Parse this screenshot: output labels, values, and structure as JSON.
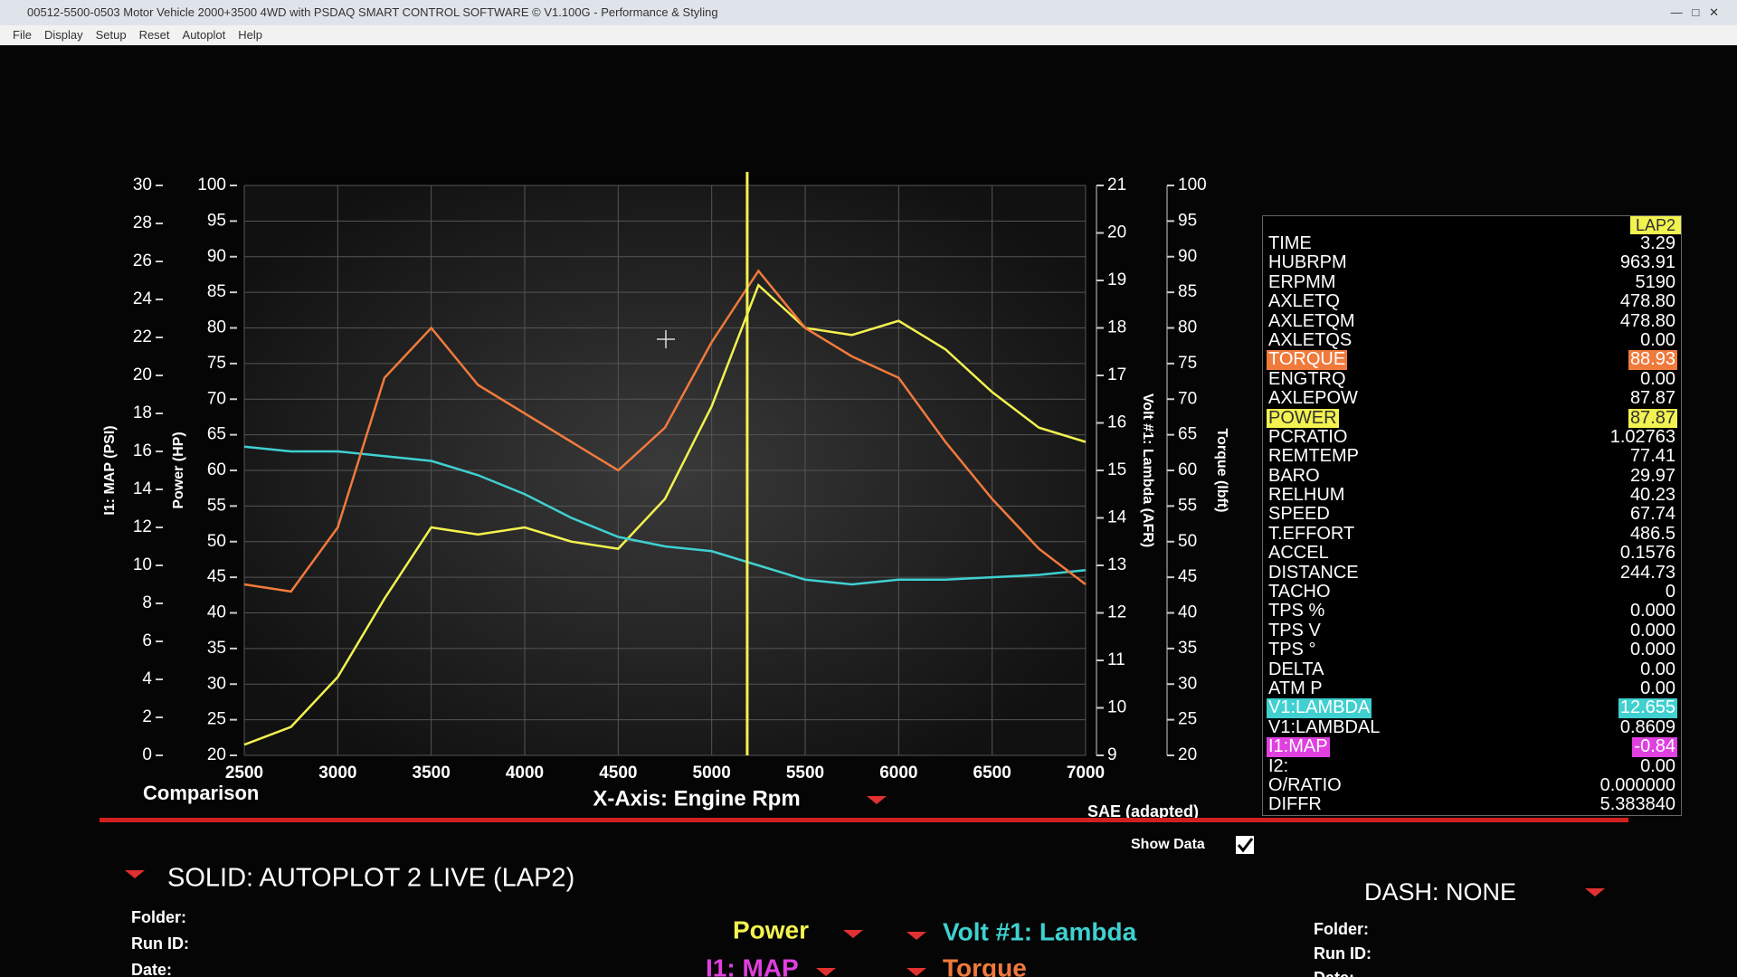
{
  "window": {
    "title": "00512-5500-0503 Motor Vehicle 2000+3500 4WD with PSDAQ SMART CONTROL SOFTWARE © V1.100G - Performance & Styling",
    "menu": [
      "File",
      "Display",
      "Setup",
      "Reset",
      "Autoplot",
      "Help"
    ]
  },
  "chart_data": {
    "type": "line",
    "x_label": "X-Axis: Engine Rpm",
    "xlim": [
      2500,
      7000
    ],
    "xticks": [
      2500,
      3000,
      3500,
      4000,
      4500,
      5000,
      5500,
      6000,
      6500,
      7000
    ],
    "grid": true,
    "cursor_x": 5190,
    "axes": [
      {
        "label": "I1: MAP (PSI)",
        "lim": [
          0,
          30
        ],
        "ticks": [
          0,
          2,
          4,
          6,
          8,
          10,
          12,
          14,
          16,
          18,
          20,
          22,
          24,
          26,
          28,
          30
        ]
      },
      {
        "label": "Power (HP)",
        "lim": [
          20,
          100
        ],
        "ticks": [
          20,
          25,
          30,
          35,
          40,
          45,
          50,
          55,
          60,
          65,
          70,
          75,
          80,
          85,
          90,
          95,
          100
        ]
      },
      {
        "label": "Volt #1: Lambda (AFR)",
        "lim": [
          9,
          21
        ],
        "ticks": [
          9,
          10,
          11,
          12,
          13,
          14,
          15,
          16,
          17,
          18,
          19,
          20,
          21
        ]
      },
      {
        "label": "Torque (lbft)",
        "lim": [
          20,
          100
        ],
        "ticks": [
          20,
          25,
          30,
          35,
          40,
          45,
          50,
          55,
          60,
          65,
          70,
          75,
          80,
          85,
          90,
          95,
          100
        ]
      }
    ],
    "x": [
      2500,
      2750,
      3000,
      3250,
      3500,
      3750,
      4000,
      4250,
      4500,
      4750,
      5000,
      5250,
      5500,
      5750,
      6000,
      6250,
      6500,
      6750,
      7000
    ],
    "series": [
      {
        "name": "Power",
        "color": "#f2f250",
        "axis": 1,
        "values": [
          21.5,
          24,
          31,
          42,
          52,
          51,
          52,
          50,
          49,
          56,
          69,
          86,
          80,
          79,
          81,
          77,
          71,
          66,
          64
        ]
      },
      {
        "name": "Volt #1: Lambda",
        "color": "#40d0d0",
        "axis": 2,
        "values": [
          15.5,
          15.4,
          15.4,
          15.3,
          15.2,
          14.9,
          14.5,
          14.0,
          13.6,
          13.4,
          13.3,
          13.0,
          12.7,
          12.6,
          12.7,
          12.7,
          12.75,
          12.8,
          12.9
        ]
      },
      {
        "name": "Torque",
        "color": "#f07a3c",
        "axis": 3,
        "values": [
          44,
          43,
          52,
          73,
          80,
          72,
          68,
          64,
          60,
          66,
          78,
          88,
          80,
          76,
          73,
          64,
          56,
          49,
          44
        ]
      }
    ],
    "extra_channels": [
      {
        "name": "I1: MAP",
        "color": "#e040e0"
      }
    ]
  },
  "readout": {
    "header": "LAP2",
    "rows": [
      {
        "label": "TIME",
        "value": "3.29"
      },
      {
        "label": "HUBRPM",
        "value": "963.91"
      },
      {
        "label": "ERPMM",
        "value": "5190"
      },
      {
        "label": "AXLETQ",
        "value": "478.80"
      },
      {
        "label": "AXLETQM",
        "value": "478.80"
      },
      {
        "label": "AXLETQS",
        "value": "0.00"
      },
      {
        "label": "TORQUE",
        "value": "88.93",
        "color": "#f07a3c"
      },
      {
        "label": "ENGTRQ",
        "value": "0.00"
      },
      {
        "label": "AXLEPOW",
        "value": "87.87"
      },
      {
        "label": "POWER",
        "value": "87.87",
        "color": "#f2f250"
      },
      {
        "label": "PCRATIO",
        "value": "1.02763"
      },
      {
        "label": "REMTEMP",
        "value": "77.41"
      },
      {
        "label": "BARO",
        "value": "29.97"
      },
      {
        "label": "RELHUM",
        "value": "40.23"
      },
      {
        "label": "SPEED",
        "value": "67.74"
      },
      {
        "label": "T.EFFORT",
        "value": "486.5"
      },
      {
        "label": "ACCEL",
        "value": "0.1576"
      },
      {
        "label": "DISTANCE",
        "value": "244.73"
      },
      {
        "label": "TACHO",
        "value": "0"
      },
      {
        "label": "TPS %",
        "value": "0.000"
      },
      {
        "label": "TPS V",
        "value": "0.000"
      },
      {
        "label": "TPS °",
        "value": "0.000"
      },
      {
        "label": "DELTA",
        "value": "0.00"
      },
      {
        "label": "ATM P",
        "value": "0.00"
      },
      {
        "label": "V1:LAMBDA",
        "value": "12.655",
        "color": "#40d0d0"
      },
      {
        "label": "V1:LAMBDAL",
        "value": "0.8609"
      },
      {
        "label": "I1:MAP",
        "value": "-0.84",
        "color": "#e040e0"
      },
      {
        "label": "I2:",
        "value": "0.00"
      },
      {
        "label": "O/RATIO",
        "value": "0.000000"
      },
      {
        "label": "DIFFR",
        "value": "5.383840"
      }
    ]
  },
  "bottom": {
    "comparison": "Comparison",
    "standard": "SAE (adapted)",
    "show_data": "Show Data",
    "solid": "SOLID: AUTOPLOT 2 LIVE (LAP2)",
    "dash": "DASH: NONE",
    "left_fields": [
      "Folder:",
      "Run ID:",
      "Date:"
    ],
    "right_fields": [
      "Folder:",
      "Run ID:",
      "Date:"
    ]
  }
}
